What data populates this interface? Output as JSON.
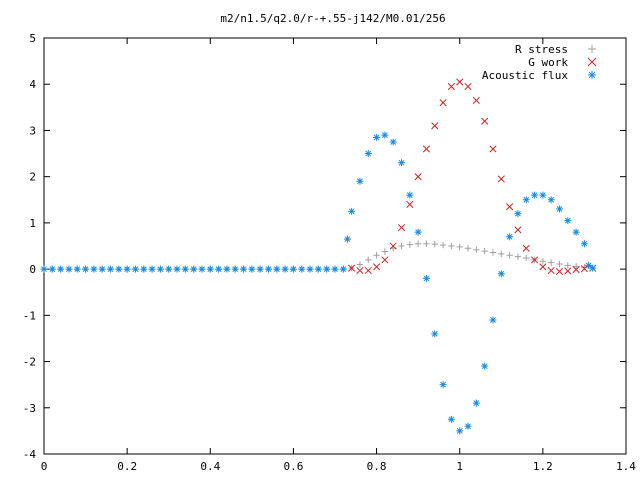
{
  "chart_data": {
    "type": "scatter",
    "title": "m2/n1.5/q2.0/r-+.55-j142/M0.01/256",
    "xlabel": "",
    "ylabel": "",
    "xlim": [
      0,
      1.4
    ],
    "ylim": [
      -4,
      5
    ],
    "x_ticks": [
      "0",
      "0.2",
      "0.4",
      "0.6",
      "0.8",
      "1",
      "1.2",
      "1.4"
    ],
    "y_ticks": [
      "-4",
      "-3",
      "-2",
      "-1",
      "0",
      "1",
      "2",
      "3",
      "4",
      "5"
    ],
    "grid": false,
    "legend_position": "top-right",
    "series": [
      {
        "name": "R stress",
        "marker": "plus",
        "color": "#a0a0a0",
        "points": [
          [
            0.0,
            0
          ],
          [
            0.02,
            0
          ],
          [
            0.04,
            0
          ],
          [
            0.06,
            0
          ],
          [
            0.08,
            0
          ],
          [
            0.1,
            0
          ],
          [
            0.12,
            0
          ],
          [
            0.14,
            0
          ],
          [
            0.16,
            0
          ],
          [
            0.18,
            0
          ],
          [
            0.2,
            0
          ],
          [
            0.22,
            0
          ],
          [
            0.24,
            0
          ],
          [
            0.26,
            0
          ],
          [
            0.28,
            0
          ],
          [
            0.3,
            0
          ],
          [
            0.32,
            0
          ],
          [
            0.34,
            0
          ],
          [
            0.36,
            0
          ],
          [
            0.38,
            0
          ],
          [
            0.4,
            0
          ],
          [
            0.42,
            0
          ],
          [
            0.44,
            0
          ],
          [
            0.46,
            0
          ],
          [
            0.48,
            0
          ],
          [
            0.5,
            0
          ],
          [
            0.52,
            0
          ],
          [
            0.54,
            0
          ],
          [
            0.56,
            0
          ],
          [
            0.58,
            0
          ],
          [
            0.6,
            0
          ],
          [
            0.62,
            0
          ],
          [
            0.64,
            0
          ],
          [
            0.66,
            0
          ],
          [
            0.68,
            0
          ],
          [
            0.7,
            0
          ],
          [
            0.72,
            0
          ],
          [
            0.74,
            0.02
          ],
          [
            0.76,
            0.1
          ],
          [
            0.78,
            0.2
          ],
          [
            0.8,
            0.3
          ],
          [
            0.82,
            0.38
          ],
          [
            0.84,
            0.45
          ],
          [
            0.86,
            0.5
          ],
          [
            0.88,
            0.53
          ],
          [
            0.9,
            0.55
          ],
          [
            0.92,
            0.55
          ],
          [
            0.94,
            0.54
          ],
          [
            0.96,
            0.52
          ],
          [
            0.98,
            0.5
          ],
          [
            1.0,
            0.48
          ],
          [
            1.02,
            0.45
          ],
          [
            1.04,
            0.42
          ],
          [
            1.06,
            0.39
          ],
          [
            1.08,
            0.36
          ],
          [
            1.1,
            0.33
          ],
          [
            1.12,
            0.3
          ],
          [
            1.14,
            0.27
          ],
          [
            1.16,
            0.24
          ],
          [
            1.18,
            0.2
          ],
          [
            1.2,
            0.17
          ],
          [
            1.22,
            0.14
          ],
          [
            1.24,
            0.11
          ],
          [
            1.26,
            0.08
          ],
          [
            1.28,
            0.06
          ],
          [
            1.3,
            0.04
          ],
          [
            1.32,
            0.02
          ]
        ]
      },
      {
        "name": "G work",
        "marker": "cross",
        "color": "#cc2222",
        "points": [
          [
            0.74,
            0.02
          ],
          [
            0.76,
            -0.03
          ],
          [
            0.78,
            -0.03
          ],
          [
            0.8,
            0.05
          ],
          [
            0.82,
            0.2
          ],
          [
            0.84,
            0.5
          ],
          [
            0.86,
            0.9
          ],
          [
            0.88,
            1.4
          ],
          [
            0.9,
            2.0
          ],
          [
            0.92,
            2.6
          ],
          [
            0.94,
            3.1
          ],
          [
            0.96,
            3.6
          ],
          [
            0.98,
            3.95
          ],
          [
            1.0,
            4.05
          ],
          [
            1.02,
            3.95
          ],
          [
            1.04,
            3.65
          ],
          [
            1.06,
            3.2
          ],
          [
            1.08,
            2.6
          ],
          [
            1.1,
            1.95
          ],
          [
            1.12,
            1.35
          ],
          [
            1.14,
            0.85
          ],
          [
            1.16,
            0.45
          ],
          [
            1.18,
            0.2
          ],
          [
            1.2,
            0.05
          ],
          [
            1.22,
            -0.03
          ],
          [
            1.24,
            -0.05
          ],
          [
            1.26,
            -0.04
          ],
          [
            1.28,
            -0.01
          ],
          [
            1.3,
            0.01
          ],
          [
            1.32,
            0.02
          ]
        ]
      },
      {
        "name": "Acoustic flux",
        "marker": "star",
        "color": "#1a8ce0",
        "points": [
          [
            0.0,
            0
          ],
          [
            0.02,
            0
          ],
          [
            0.04,
            0
          ],
          [
            0.06,
            0
          ],
          [
            0.08,
            0
          ],
          [
            0.1,
            0
          ],
          [
            0.12,
            0
          ],
          [
            0.14,
            0
          ],
          [
            0.16,
            0
          ],
          [
            0.18,
            0
          ],
          [
            0.2,
            0
          ],
          [
            0.22,
            0
          ],
          [
            0.24,
            0
          ],
          [
            0.26,
            0
          ],
          [
            0.28,
            0
          ],
          [
            0.3,
            0
          ],
          [
            0.32,
            0
          ],
          [
            0.34,
            0
          ],
          [
            0.36,
            0
          ],
          [
            0.38,
            0
          ],
          [
            0.4,
            0
          ],
          [
            0.42,
            0
          ],
          [
            0.44,
            0
          ],
          [
            0.46,
            0
          ],
          [
            0.48,
            0
          ],
          [
            0.5,
            0
          ],
          [
            0.52,
            0
          ],
          [
            0.54,
            0
          ],
          [
            0.56,
            0
          ],
          [
            0.58,
            0
          ],
          [
            0.6,
            0
          ],
          [
            0.62,
            0
          ],
          [
            0.64,
            0
          ],
          [
            0.66,
            0
          ],
          [
            0.68,
            0
          ],
          [
            0.7,
            0
          ],
          [
            0.72,
            0
          ],
          [
            0.73,
            0.65
          ],
          [
            0.74,
            1.25
          ],
          [
            0.76,
            1.9
          ],
          [
            0.78,
            2.5
          ],
          [
            0.8,
            2.85
          ],
          [
            0.82,
            2.9
          ],
          [
            0.84,
            2.75
          ],
          [
            0.86,
            2.3
          ],
          [
            0.88,
            1.6
          ],
          [
            0.9,
            0.8
          ],
          [
            0.92,
            -0.2
          ],
          [
            0.94,
            -1.4
          ],
          [
            0.96,
            -2.5
          ],
          [
            0.98,
            -3.25
          ],
          [
            1.0,
            -3.5
          ],
          [
            1.02,
            -3.4
          ],
          [
            1.04,
            -2.9
          ],
          [
            1.06,
            -2.1
          ],
          [
            1.08,
            -1.1
          ],
          [
            1.1,
            -0.1
          ],
          [
            1.12,
            0.7
          ],
          [
            1.14,
            1.2
          ],
          [
            1.16,
            1.5
          ],
          [
            1.18,
            1.6
          ],
          [
            1.2,
            1.6
          ],
          [
            1.22,
            1.5
          ],
          [
            1.24,
            1.3
          ],
          [
            1.26,
            1.05
          ],
          [
            1.28,
            0.8
          ],
          [
            1.3,
            0.55
          ],
          [
            1.31,
            0.08
          ],
          [
            1.32,
            0.02
          ]
        ]
      }
    ]
  }
}
